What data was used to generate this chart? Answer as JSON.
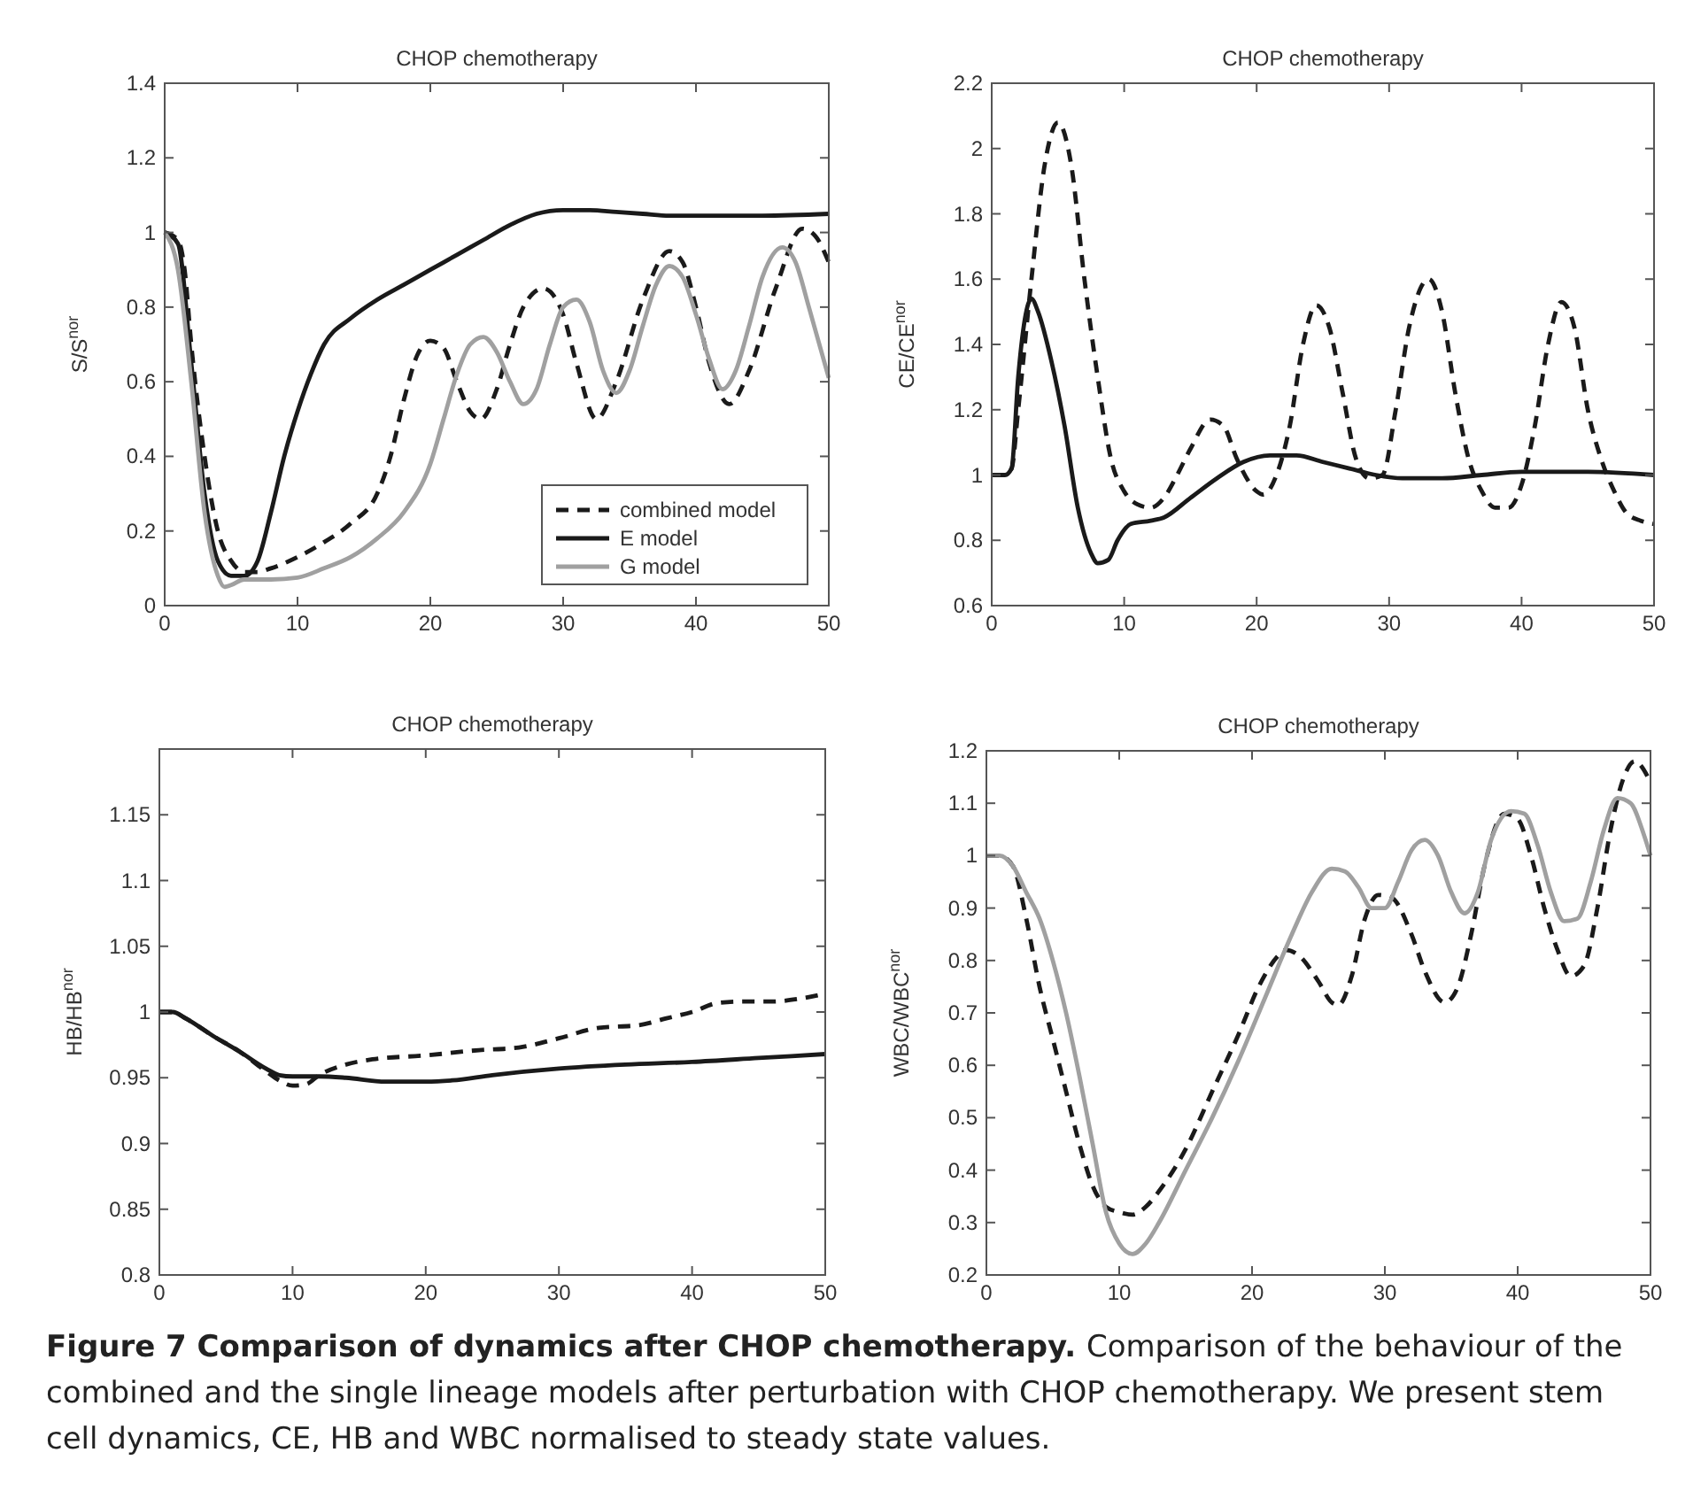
{
  "chart_data": [
    {
      "type": "line",
      "title": "CHOP chemotherapy",
      "ylabel": "S/S$^{nor}$",
      "xlim": [
        0,
        50
      ],
      "ylim": [
        0,
        1.4
      ],
      "xticks": [
        0,
        10,
        20,
        30,
        40,
        50
      ],
      "yticks": [
        0,
        0.2,
        0.4,
        0.6,
        0.8,
        1,
        1.2,
        1.4
      ],
      "legend": "bottom right",
      "grid": false,
      "series": [
        {
          "name": "combined model",
          "color": "#1a1a1a",
          "line_style": "dashed",
          "x": [
            0,
            1,
            1.5,
            2,
            3,
            4,
            5,
            6,
            7,
            8,
            10,
            12,
            14,
            16,
            17,
            18,
            19,
            20,
            21,
            22,
            23,
            23.8,
            25,
            26,
            27,
            28.5,
            30,
            31,
            32.5,
            34,
            36,
            38,
            39,
            40,
            41,
            42.5,
            44,
            46,
            48,
            49,
            50
          ],
          "values": [
            1.0,
            0.98,
            0.9,
            0.7,
            0.4,
            0.2,
            0.12,
            0.09,
            0.09,
            0.1,
            0.13,
            0.17,
            0.22,
            0.3,
            0.4,
            0.55,
            0.67,
            0.71,
            0.69,
            0.6,
            0.52,
            0.5,
            0.58,
            0.7,
            0.8,
            0.85,
            0.78,
            0.65,
            0.5,
            0.6,
            0.82,
            0.95,
            0.92,
            0.8,
            0.65,
            0.54,
            0.63,
            0.85,
            1.01,
            0.99,
            0.92
          ]
        },
        {
          "name": "E model",
          "color": "#1a1a1a",
          "line_style": "solid",
          "x": [
            0,
            1,
            2,
            3,
            4,
            5,
            6,
            7,
            8,
            9,
            10,
            11,
            12,
            14,
            16,
            18,
            20,
            22,
            24,
            26,
            28,
            30,
            32,
            34,
            36,
            38,
            40,
            45,
            50
          ],
          "values": [
            1.0,
            0.97,
            0.65,
            0.3,
            0.12,
            0.08,
            0.08,
            0.12,
            0.25,
            0.4,
            0.52,
            0.62,
            0.7,
            0.77,
            0.82,
            0.86,
            0.9,
            0.94,
            0.98,
            1.02,
            1.05,
            1.06,
            1.06,
            1.055,
            1.05,
            1.045,
            1.045,
            1.045,
            1.05
          ]
        },
        {
          "name": "G model",
          "color": "#a0a0a0",
          "line_style": "solid",
          "x": [
            0,
            1,
            2,
            3,
            4,
            4.5,
            5,
            6,
            8,
            10,
            12,
            14,
            16,
            18,
            20,
            21,
            22,
            23,
            24,
            25,
            26,
            27,
            28,
            29,
            30,
            31,
            32,
            33,
            34,
            35,
            36,
            37,
            38,
            39,
            40,
            41,
            42,
            43,
            44,
            45,
            46.5,
            47.5,
            48.5,
            50
          ],
          "values": [
            1.0,
            0.9,
            0.6,
            0.25,
            0.08,
            0.05,
            0.055,
            0.07,
            0.07,
            0.075,
            0.1,
            0.13,
            0.18,
            0.25,
            0.38,
            0.5,
            0.62,
            0.7,
            0.72,
            0.68,
            0.6,
            0.54,
            0.58,
            0.7,
            0.8,
            0.82,
            0.76,
            0.63,
            0.57,
            0.63,
            0.75,
            0.86,
            0.91,
            0.88,
            0.78,
            0.66,
            0.58,
            0.63,
            0.75,
            0.88,
            0.96,
            0.92,
            0.8,
            0.61
          ]
        }
      ]
    },
    {
      "type": "line",
      "title": "CHOP chemotherapy",
      "ylabel": "CE/CE$^{nor}$",
      "xlim": [
        0,
        50
      ],
      "ylim": [
        0.6,
        2.2
      ],
      "xticks": [
        0,
        10,
        20,
        30,
        40,
        50
      ],
      "yticks": [
        0.6,
        0.8,
        1,
        1.2,
        1.4,
        1.6,
        1.8,
        2,
        2.2
      ],
      "grid": false,
      "series": [
        {
          "color": "#1a1a1a",
          "line_style": "dashed",
          "x": [
            0,
            1,
            1.5,
            2,
            3,
            4,
            5,
            6,
            7,
            8,
            9,
            10,
            11,
            12,
            13,
            14,
            15,
            16.5,
            17.5,
            18.5,
            20,
            20.5,
            21.5,
            22.5,
            23.5,
            24.5,
            25.5,
            26.5,
            27.5,
            28.5,
            29.5,
            30.5,
            31.5,
            33,
            34,
            35,
            36,
            37,
            38,
            39,
            40,
            41,
            42,
            43,
            44,
            45,
            46,
            47,
            48,
            49,
            50
          ],
          "values": [
            1.0,
            1.0,
            1.02,
            1.2,
            1.6,
            1.95,
            2.08,
            1.95,
            1.6,
            1.3,
            1.05,
            0.95,
            0.91,
            0.9,
            0.93,
            1.0,
            1.08,
            1.17,
            1.15,
            1.05,
            0.95,
            0.94,
            1.0,
            1.15,
            1.4,
            1.52,
            1.45,
            1.25,
            1.05,
            0.99,
            1.0,
            1.2,
            1.45,
            1.6,
            1.5,
            1.25,
            1.05,
            0.95,
            0.9,
            0.9,
            0.97,
            1.15,
            1.4,
            1.53,
            1.45,
            1.2,
            1.05,
            0.95,
            0.88,
            0.86,
            0.85
          ]
        },
        {
          "color": "#1a1a1a",
          "line_style": "solid",
          "x": [
            0,
            1,
            1.5,
            2,
            3,
            3.5,
            4.5,
            5.5,
            6.5,
            7.5,
            8,
            8.8,
            9.5,
            10.5,
            12,
            13,
            15,
            17,
            19,
            21,
            23,
            25,
            27,
            29,
            31,
            34,
            37,
            40,
            45,
            50
          ],
          "values": [
            1.0,
            1.0,
            1.02,
            1.3,
            1.54,
            1.5,
            1.35,
            1.15,
            0.9,
            0.76,
            0.73,
            0.74,
            0.8,
            0.85,
            0.86,
            0.87,
            0.93,
            0.99,
            1.04,
            1.06,
            1.06,
            1.04,
            1.02,
            1.0,
            0.99,
            0.99,
            1.0,
            1.01,
            1.01,
            1.0
          ]
        }
      ]
    },
    {
      "type": "line",
      "title": "CHOP chemotherapy",
      "ylabel": "HB/HB$^{nor}$",
      "xlim": [
        0,
        50
      ],
      "ylim": [
        0.8,
        1.2
      ],
      "xticks": [
        0,
        10,
        20,
        30,
        40,
        50
      ],
      "yticks": [
        0.8,
        0.85,
        0.9,
        0.95,
        1,
        1.05,
        1.1,
        1.15
      ],
      "grid": false,
      "series": [
        {
          "color": "#1a1a1a",
          "line_style": "dashed",
          "x": [
            0,
            1,
            2,
            4,
            6,
            8,
            9,
            10,
            11,
            12,
            14,
            16,
            20,
            24,
            27,
            30,
            33,
            36,
            38,
            40,
            42,
            44,
            46,
            48,
            50
          ],
          "values": [
            1.0,
            1.0,
            0.995,
            0.982,
            0.97,
            0.955,
            0.948,
            0.944,
            0.945,
            0.952,
            0.96,
            0.964,
            0.967,
            0.971,
            0.973,
            0.98,
            0.988,
            0.99,
            0.995,
            1.0,
            1.007,
            1.008,
            1.008,
            1.01,
            1.014
          ]
        },
        {
          "color": "#1a1a1a",
          "line_style": "solid",
          "x": [
            0,
            1,
            2,
            4,
            6,
            8,
            9,
            10,
            12,
            14,
            17,
            20,
            22,
            25,
            30,
            35,
            40,
            45,
            50
          ],
          "values": [
            1.0,
            1.0,
            0.995,
            0.982,
            0.97,
            0.957,
            0.952,
            0.951,
            0.951,
            0.95,
            0.947,
            0.947,
            0.948,
            0.952,
            0.957,
            0.96,
            0.962,
            0.965,
            0.968
          ]
        }
      ]
    },
    {
      "type": "line",
      "title": "CHOP chemotherapy",
      "ylabel": "WBC/WBC$^{nor}$",
      "xlim": [
        0,
        50
      ],
      "ylim": [
        0.2,
        1.2
      ],
      "xticks": [
        0,
        10,
        20,
        30,
        40,
        50
      ],
      "yticks": [
        0.2,
        0.3,
        0.4,
        0.5,
        0.6,
        0.7,
        0.8,
        0.9,
        1,
        1.1,
        1.2
      ],
      "grid": false,
      "annotations": [
        "Figure 7 Comparison of dynamics after CHOP chemotherapy.",
        "Comparison of the behaviour of the combined and the single lineage models after perturbation with CHOP chemotherapy. We present stem cell dynamics, CE, HB and WBC normalised to steady state values."
      ],
      "series": [
        {
          "color": "#1a1a1a",
          "line_style": "dashed",
          "x": [
            0,
            1,
            2,
            3,
            4,
            5,
            6,
            7,
            8,
            9,
            10,
            11,
            12,
            13,
            15,
            17,
            19,
            20.5,
            22,
            22.5,
            23.5,
            25,
            26,
            26.5,
            27.5,
            28.5,
            29.5,
            30.5,
            32,
            33,
            34.5,
            35.5,
            36.5,
            37.5,
            39,
            40,
            41,
            42,
            43,
            44,
            45,
            46,
            47,
            48,
            48.8,
            50
          ],
          "values": [
            1.0,
            1.0,
            0.98,
            0.88,
            0.75,
            0.65,
            0.55,
            0.45,
            0.37,
            0.33,
            0.32,
            0.315,
            0.33,
            0.36,
            0.44,
            0.55,
            0.66,
            0.75,
            0.81,
            0.82,
            0.81,
            0.76,
            0.72,
            0.715,
            0.77,
            0.88,
            0.925,
            0.92,
            0.85,
            0.78,
            0.72,
            0.75,
            0.85,
            0.98,
            1.08,
            1.07,
            1.0,
            0.9,
            0.82,
            0.77,
            0.79,
            0.9,
            1.05,
            1.15,
            1.18,
            1.14
          ]
        },
        {
          "color": "#a0a0a0",
          "line_style": "solid",
          "x": [
            0,
            1,
            2,
            3,
            4,
            5,
            6,
            7,
            8,
            9,
            10,
            11,
            12,
            13,
            15,
            17,
            19,
            21,
            23,
            24.5,
            26,
            27,
            28,
            29,
            30,
            31,
            32,
            33,
            34,
            35,
            36,
            37,
            38,
            39.5,
            40.5,
            41.5,
            42.5,
            43.5,
            44.5,
            45.5,
            46.5,
            47.5,
            48.5,
            49.5,
            50
          ],
          "values": [
            1.0,
            1.0,
            0.98,
            0.93,
            0.88,
            0.8,
            0.7,
            0.58,
            0.45,
            0.32,
            0.26,
            0.24,
            0.26,
            0.3,
            0.4,
            0.5,
            0.61,
            0.73,
            0.85,
            0.93,
            0.975,
            0.97,
            0.94,
            0.9,
            0.9,
            0.95,
            1.01,
            1.03,
            1.0,
            0.93,
            0.89,
            0.93,
            1.03,
            1.085,
            1.08,
            1.02,
            0.93,
            0.875,
            0.88,
            0.95,
            1.05,
            1.11,
            1.1,
            1.04,
            1.0
          ]
        }
      ]
    }
  ]
}
